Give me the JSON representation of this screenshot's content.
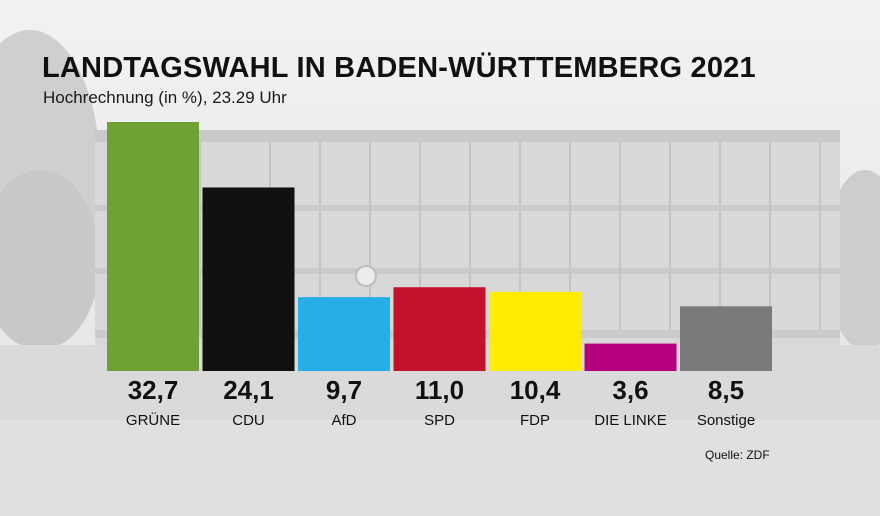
{
  "title": "LANDTAGSWAHL IN BADEN-WÜRTTEMBERG 2021",
  "subtitle": "Hochrechnung (in %), 23.29 Uhr",
  "source": "Quelle: ZDF",
  "chart_data": {
    "type": "bar",
    "categories": [
      "GRÜNE",
      "CDU",
      "AfD",
      "SPD",
      "FDP",
      "DIE LINKE",
      "Sonstige"
    ],
    "values": [
      32.7,
      24.1,
      9.7,
      11.0,
      10.4,
      3.6,
      8.5
    ],
    "value_labels": [
      "32,7",
      "24,1",
      "9,7",
      "11,0",
      "10,4",
      "3,6",
      "8,5"
    ],
    "colors": [
      "#6fa135",
      "#111111",
      "#26aee8",
      "#c4122c",
      "#ffec00",
      "#b4007e",
      "#7a7a7a"
    ],
    "title": "LANDTAGSWAHL IN BADEN-WÜRTTEMBERG 2021",
    "subtitle": "Hochrechnung (in %), 23.29 Uhr",
    "xlabel": "",
    "ylabel": "",
    "ylim": [
      0,
      32.7
    ],
    "grid": false,
    "legend": "none"
  }
}
